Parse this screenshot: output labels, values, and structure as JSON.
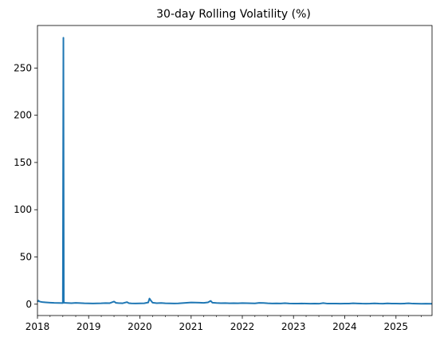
{
  "chart_data": {
    "type": "line",
    "title": "30-day Rolling Volatility (%)",
    "xlabel": "",
    "ylabel": "",
    "xlim": [
      "2018-01-01",
      "2025-09-15"
    ],
    "ylim": [
      -12,
      295
    ],
    "x_ticks": [
      "2018",
      "2019",
      "2020",
      "2021",
      "2022",
      "2023",
      "2024",
      "2025"
    ],
    "y_ticks": [
      0,
      50,
      100,
      150,
      200,
      250
    ],
    "grid": false,
    "line_color": "#1f77b4",
    "series": [
      {
        "values": [
          [
            "2018-01-01",
            2.5
          ],
          [
            "2018-01-08",
            3.8
          ],
          [
            "2018-01-15",
            2.9
          ],
          [
            "2018-01-22",
            2.6
          ],
          [
            "2018-02-05",
            2.2
          ],
          [
            "2018-03-01",
            1.9
          ],
          [
            "2018-04-01",
            1.6
          ],
          [
            "2018-05-01",
            1.4
          ],
          [
            "2018-06-01",
            1.3
          ],
          [
            "2018-07-01",
            1.2
          ],
          [
            "2018-07-05",
            282
          ],
          [
            "2018-07-08",
            1.5
          ],
          [
            "2018-08-01",
            1.3
          ],
          [
            "2018-09-01",
            1.1
          ],
          [
            "2018-10-01",
            1.4
          ],
          [
            "2018-11-01",
            1.2
          ],
          [
            "2018-12-01",
            1.0
          ],
          [
            "2019-01-01",
            0.9
          ],
          [
            "2019-02-01",
            0.8
          ],
          [
            "2019-03-01",
            0.9
          ],
          [
            "2019-04-01",
            1.0
          ],
          [
            "2019-05-01",
            1.2
          ],
          [
            "2019-06-01",
            1.1
          ],
          [
            "2019-07-01",
            2.8
          ],
          [
            "2019-07-15",
            1.4
          ],
          [
            "2019-08-01",
            1.2
          ],
          [
            "2019-09-01",
            1.0
          ],
          [
            "2019-10-01",
            2.2
          ],
          [
            "2019-10-15",
            1.1
          ],
          [
            "2019-11-01",
            0.9
          ],
          [
            "2019-12-01",
            0.8
          ],
          [
            "2020-01-01",
            0.9
          ],
          [
            "2020-02-01",
            1.0
          ],
          [
            "2020-03-01",
            1.8
          ],
          [
            "2020-03-10",
            6.0
          ],
          [
            "2020-03-20",
            3.8
          ],
          [
            "2020-04-01",
            1.6
          ],
          [
            "2020-05-01",
            1.1
          ],
          [
            "2020-06-01",
            1.3
          ],
          [
            "2020-07-01",
            1.0
          ],
          [
            "2020-08-01",
            0.9
          ],
          [
            "2020-09-01",
            0.8
          ],
          [
            "2020-10-01",
            0.9
          ],
          [
            "2020-11-01",
            1.2
          ],
          [
            "2020-12-01",
            1.5
          ],
          [
            "2021-01-01",
            1.8
          ],
          [
            "2021-02-01",
            1.7
          ],
          [
            "2021-03-01",
            1.6
          ],
          [
            "2021-04-01",
            1.4
          ],
          [
            "2021-05-01",
            1.9
          ],
          [
            "2021-05-20",
            3.5
          ],
          [
            "2021-06-01",
            1.6
          ],
          [
            "2021-07-01",
            1.3
          ],
          [
            "2021-08-01",
            1.1
          ],
          [
            "2021-09-01",
            1.2
          ],
          [
            "2021-10-01",
            1.0
          ],
          [
            "2021-11-01",
            1.1
          ],
          [
            "2021-12-01",
            1.0
          ],
          [
            "2022-01-01",
            1.2
          ],
          [
            "2022-02-01",
            1.1
          ],
          [
            "2022-03-01",
            1.0
          ],
          [
            "2022-04-01",
            0.9
          ],
          [
            "2022-05-01",
            1.4
          ],
          [
            "2022-06-01",
            1.3
          ],
          [
            "2022-07-01",
            1.0
          ],
          [
            "2022-08-01",
            0.8
          ],
          [
            "2022-09-01",
            0.9
          ],
          [
            "2022-10-01",
            0.8
          ],
          [
            "2022-11-01",
            1.1
          ],
          [
            "2022-12-01",
            0.8
          ],
          [
            "2023-01-01",
            0.7
          ],
          [
            "2023-02-01",
            0.6
          ],
          [
            "2023-03-01",
            0.8
          ],
          [
            "2023-04-01",
            0.6
          ],
          [
            "2023-05-01",
            0.5
          ],
          [
            "2023-06-01",
            0.6
          ],
          [
            "2023-07-01",
            0.5
          ],
          [
            "2023-08-01",
            1.2
          ],
          [
            "2023-09-01",
            0.6
          ],
          [
            "2023-10-01",
            0.7
          ],
          [
            "2023-11-01",
            0.6
          ],
          [
            "2023-12-01",
            0.5
          ],
          [
            "2024-01-01",
            0.6
          ],
          [
            "2024-02-01",
            0.7
          ],
          [
            "2024-03-01",
            1.0
          ],
          [
            "2024-04-01",
            0.8
          ],
          [
            "2024-05-01",
            0.6
          ],
          [
            "2024-06-01",
            0.5
          ],
          [
            "2024-07-01",
            0.6
          ],
          [
            "2024-08-01",
            0.9
          ],
          [
            "2024-09-01",
            0.6
          ],
          [
            "2024-10-01",
            0.5
          ],
          [
            "2024-11-01",
            0.9
          ],
          [
            "2024-12-01",
            0.7
          ],
          [
            "2025-01-01",
            0.6
          ],
          [
            "2025-02-01",
            0.5
          ],
          [
            "2025-03-01",
            0.7
          ],
          [
            "2025-04-01",
            1.0
          ],
          [
            "2025-05-01",
            0.6
          ],
          [
            "2025-06-01",
            0.5
          ],
          [
            "2025-07-01",
            0.4
          ],
          [
            "2025-08-01",
            0.5
          ],
          [
            "2025-09-15",
            0.4
          ]
        ]
      }
    ]
  }
}
